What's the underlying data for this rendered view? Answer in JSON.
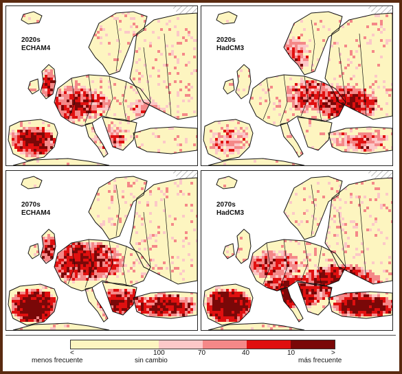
{
  "panels": [
    {
      "decade": "2020s",
      "model": "ECHAM4",
      "intensity": "high-west"
    },
    {
      "decade": "2020s",
      "model": "HadCM3",
      "intensity": "high-east"
    },
    {
      "decade": "2070s",
      "model": "ECHAM4",
      "intensity": "very-high-west"
    },
    {
      "decade": "2070s",
      "model": "HadCM3",
      "intensity": "very-high-south"
    }
  ],
  "legend": {
    "less_frequent": "menos frecuente",
    "no_change": "sin cambio",
    "more_frequent": "más frecuente",
    "ticks": [
      "<",
      "100",
      "70",
      "40",
      "10",
      ">"
    ],
    "colors": [
      "#fdf5c0",
      "#fcc8c8",
      "#f48888",
      "#e01010",
      "#7a0808"
    ]
  },
  "colors": {
    "sea": "#ffffff",
    "land_base": "#fdf5c0",
    "border_line": "#111111",
    "no_data_hatch": "#bbbbbb"
  }
}
